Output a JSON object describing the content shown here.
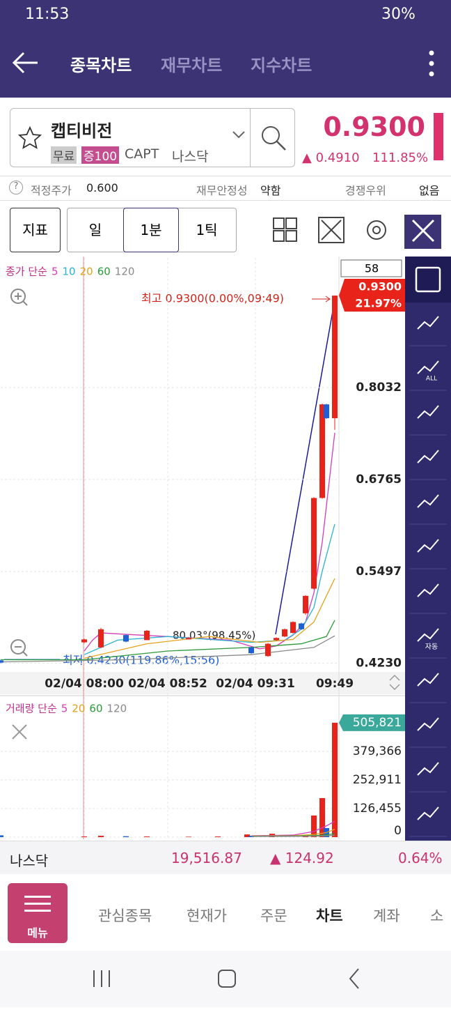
{
  "status_bar": {
    "time": "11:53",
    "battery": "30%"
  },
  "header": {
    "tabs": [
      "종목차트",
      "재무차트",
      "지수차트"
    ]
  },
  "stock": {
    "name": "캡티비전",
    "badges": [
      "무료",
      "증100"
    ],
    "ticker": "CAPT",
    "market": "나스닥",
    "price": "0.9300",
    "change": "0.4910",
    "change_percent": "111.85%"
  },
  "info": {
    "fair_price_label": "적정주가",
    "fair_price": "0.600",
    "stability_label": "재무안정성",
    "stability": "약함",
    "moat_label": "경쟁우위",
    "moat": "없음"
  },
  "toolbar": {
    "indicator": "지표",
    "periods": [
      "일",
      "1분",
      "1틱"
    ]
  },
  "chart_data": [
    {
      "type": "candlestick",
      "legend_title": "종가 단순",
      "bar_count": "58",
      "price_tag": "0.9300",
      "price_tag_percent": "21.97%",
      "annotations": {
        "high": "최고 0.9300(0.00%,09:49)",
        "low": "최저 0.4230(119.86%,15:56)",
        "angle": "80.03°(98.45%)"
      },
      "up_color": "#e8231a",
      "down_color": "#1f5fd6",
      "xlim": [
        0,
        81
      ],
      "xticks": [
        {
          "value": 20,
          "label": "02/04 08:00"
        },
        {
          "value": 40,
          "label": "02/04 08:52"
        },
        {
          "value": 61,
          "label": "02/04 09:31"
        },
        {
          "value": 80,
          "label": "09:49"
        }
      ],
      "ylim": [
        0.415,
        0.982
      ],
      "yticks": [
        {
          "value": 0.423,
          "label": "0.4230"
        },
        {
          "value": 0.5497,
          "label": "0.5497"
        },
        {
          "value": 0.6765,
          "label": "0.6765"
        },
        {
          "value": 0.8032,
          "label": "0.8032"
        }
      ],
      "candles": [
        {
          "x": 0,
          "open": 0.427,
          "high": 0.428,
          "low": 0.423,
          "close": 0.424
        },
        {
          "x": 20,
          "open": 0.452,
          "high": 0.457,
          "low": 0.451,
          "close": 0.456
        },
        {
          "x": 24,
          "open": 0.445,
          "high": 0.472,
          "low": 0.444,
          "close": 0.47
        },
        {
          "x": 30,
          "open": 0.462,
          "high": 0.463,
          "low": 0.452,
          "close": 0.453
        },
        {
          "x": 35,
          "open": 0.455,
          "high": 0.469,
          "low": 0.455,
          "close": 0.468
        },
        {
          "x": 45,
          "open": 0.457,
          "high": 0.459,
          "low": 0.456,
          "close": 0.458
        },
        {
          "x": 60,
          "open": 0.445,
          "high": 0.446,
          "low": 0.436,
          "close": 0.437
        },
        {
          "x": 64,
          "open": 0.433,
          "high": 0.451,
          "low": 0.432,
          "close": 0.45
        },
        {
          "x": 66,
          "open": 0.455,
          "high": 0.459,
          "low": 0.454,
          "close": 0.458
        },
        {
          "x": 68,
          "open": 0.46,
          "high": 0.471,
          "low": 0.459,
          "close": 0.47
        },
        {
          "x": 70,
          "open": 0.465,
          "high": 0.481,
          "low": 0.464,
          "close": 0.48
        },
        {
          "x": 72,
          "open": 0.478,
          "high": 0.479,
          "low": 0.469,
          "close": 0.47
        },
        {
          "x": 73,
          "open": 0.492,
          "high": 0.517,
          "low": 0.49,
          "close": 0.516
        },
        {
          "x": 75,
          "open": 0.526,
          "high": 0.652,
          "low": 0.525,
          "close": 0.651
        },
        {
          "x": 77,
          "open": 0.651,
          "high": 0.781,
          "low": 0.65,
          "close": 0.78
        },
        {
          "x": 78,
          "open": 0.78,
          "high": 0.781,
          "low": 0.76,
          "close": 0.761
        },
        {
          "x": 80,
          "open": 0.761,
          "high": 0.93,
          "low": 0.745,
          "close": 0.93
        }
      ],
      "series": [
        {
          "name": "5",
          "color": "#d63bb8",
          "x": [
            20,
            22,
            24,
            30,
            40,
            55,
            62,
            66,
            70,
            73,
            75,
            77,
            78,
            80
          ],
          "values": [
            0.44,
            0.455,
            0.465,
            0.463,
            0.46,
            0.455,
            0.443,
            0.447,
            0.462,
            0.48,
            0.52,
            0.59,
            0.64,
            0.741
          ]
        },
        {
          "name": "10",
          "color": "#27b3d0",
          "x": [
            20,
            28,
            40,
            60,
            68,
            72,
            75,
            77,
            80
          ],
          "values": [
            0.435,
            0.455,
            0.46,
            0.452,
            0.455,
            0.47,
            0.5,
            0.55,
            0.615
          ]
        },
        {
          "name": "20",
          "color": "#e3a21a",
          "x": [
            20,
            35,
            50,
            62,
            70,
            75,
            80
          ],
          "values": [
            0.43,
            0.45,
            0.46,
            0.452,
            0.456,
            0.48,
            0.54
          ]
        },
        {
          "name": "60",
          "color": "#2a9a3a",
          "x": [
            0,
            20,
            40,
            60,
            72,
            78,
            80
          ],
          "values": [
            0.428,
            0.428,
            0.44,
            0.445,
            0.45,
            0.46,
            0.4825
          ]
        },
        {
          "name": "120",
          "color": "#888888",
          "x": [
            0,
            30,
            60,
            75,
            80
          ],
          "values": [
            0.425,
            0.428,
            0.435,
            0.445,
            0.461
          ]
        }
      ]
    },
    {
      "type": "bar",
      "legend_title": "거래량 단순",
      "xlim": [
        0,
        81
      ],
      "ylim": [
        0,
        604000
      ],
      "yticks": [
        0,
        {
          "value": 126455,
          "label": "126,455"
        },
        {
          "value": 252911,
          "label": "252,911"
        },
        {
          "value": 379366,
          "label": "379,366"
        }
      ],
      "current_value": {
        "value": 505821,
        "label": "505,821"
      },
      "x": [
        0,
        20,
        24,
        30,
        35,
        45,
        52,
        59,
        60,
        65,
        73,
        75,
        77,
        78,
        80
      ],
      "values": [
        8000,
        3000,
        6000,
        4000,
        3000,
        2000,
        3000,
        12000,
        6000,
        15000,
        10000,
        95600,
        172700,
        40000,
        505821
      ],
      "colors": [
        "#1f5fd6",
        "#e8231a",
        "#e8231a",
        "#1f5fd6",
        "#e8231a",
        "#e8231a",
        "#e8231a",
        "#e8231a",
        "#1f5fd6",
        "#e8231a",
        "#e8231a",
        "#e8231a",
        "#e8231a",
        "#1f5fd6",
        "#e8231a"
      ],
      "series": [
        {
          "name": "5",
          "color": "#d63bb8",
          "x": [
            60,
            70,
            75,
            78,
            80
          ],
          "values": [
            6000,
            9000,
            25000,
            50000,
            70000
          ]
        },
        {
          "name": "20",
          "color": "#e3a21a",
          "x": [
            60,
            70,
            75,
            78,
            80
          ],
          "values": [
            5000,
            6000,
            12000,
            20000,
            35000
          ]
        },
        {
          "name": "60",
          "color": "#2a9a3a",
          "x": [
            60,
            70,
            75,
            78,
            80
          ],
          "values": [
            4000,
            5000,
            7000,
            10000,
            15000
          ]
        },
        {
          "name": "120",
          "color": "#888888",
          "x": [
            60,
            70,
            75,
            78,
            80
          ],
          "values": [
            3000,
            3500,
            4500,
            6000,
            8000
          ]
        }
      ]
    }
  ],
  "index_bar": {
    "name": "나스닥",
    "value": "19,516.87",
    "change": "124.92",
    "change_percent": "0.64%"
  },
  "bottom_nav": {
    "menu": "메뉴",
    "items": [
      "관심종목",
      "현재가",
      "주문",
      "차트",
      "계좌",
      "소"
    ]
  },
  "sidebar": {
    "all": "ALL",
    "auto": "자동"
  }
}
